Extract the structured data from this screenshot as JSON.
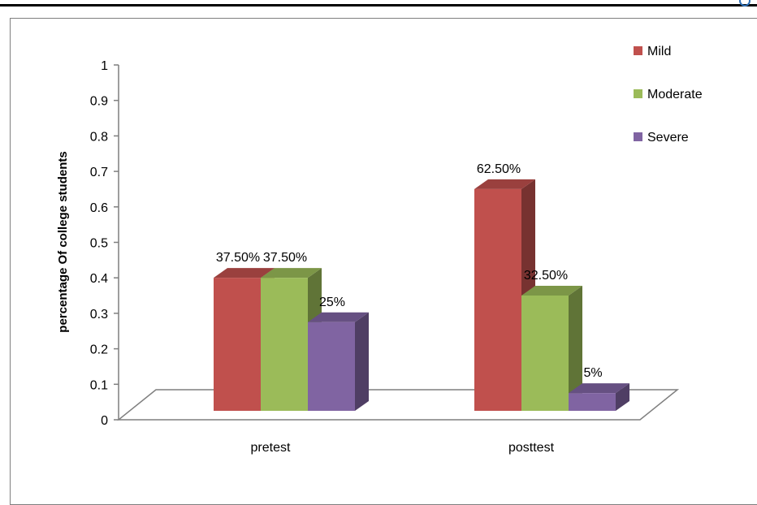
{
  "chart_data": {
    "type": "bar",
    "title": "",
    "xlabel": "",
    "ylabel": "percentage Of college students",
    "ylim": [
      0,
      1
    ],
    "yticks": [
      "0",
      "0.1",
      "0.2",
      "0.3",
      "0.4",
      "0.5",
      "0.6",
      "0.7",
      "0.8",
      "0.9",
      "1"
    ],
    "categories": [
      "pretest",
      "posttest"
    ],
    "series": [
      {
        "name": "Mild",
        "values": [
          0.375,
          0.625
        ],
        "labels": [
          "37.50%",
          "62.50%"
        ],
        "color": "#c0504d"
      },
      {
        "name": "Moderate",
        "values": [
          0.375,
          0.325
        ],
        "labels": [
          "37.50%",
          "32.50%"
        ],
        "color": "#9bbb59"
      },
      {
        "name": "Severe",
        "values": [
          0.25,
          0.05
        ],
        "labels": [
          "25%",
          "5%"
        ],
        "color": "#8064a2"
      }
    ],
    "legend_position": "top-right",
    "grid": false,
    "style": "3d-clustered-column"
  }
}
